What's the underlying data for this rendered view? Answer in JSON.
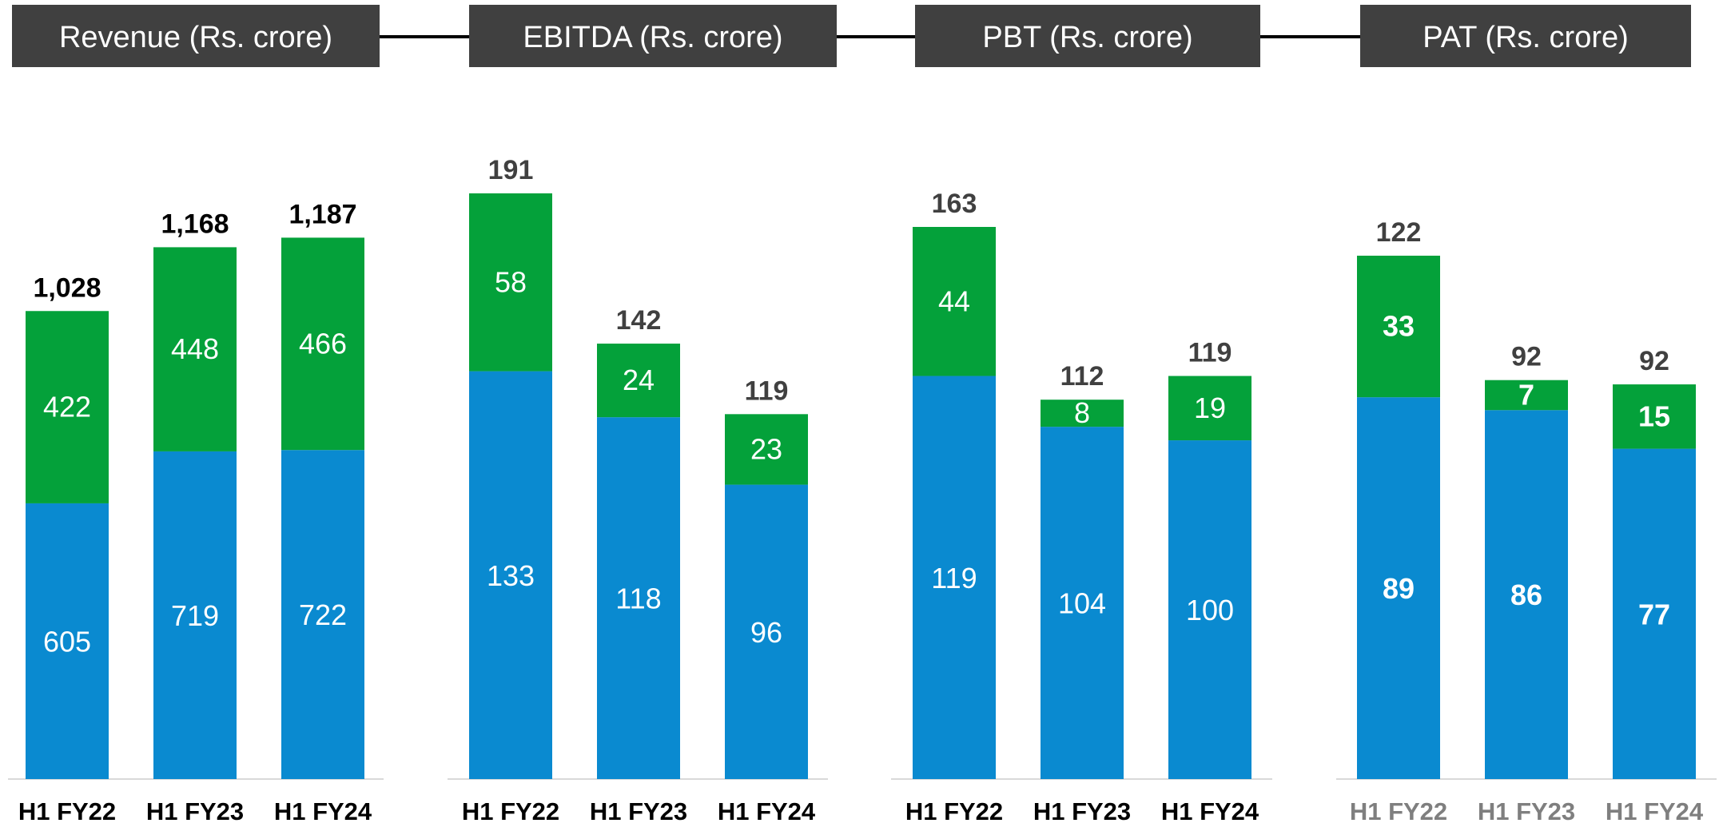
{
  "colors": {
    "segment_bottom": "#0A8AD0",
    "segment_top": "#04A13A",
    "header_bg": "#404040",
    "header_text": "#ffffff",
    "connector": "#000000",
    "baseline": "#D9D9D9",
    "total_label_dark": "#000000",
    "total_label_grey": "#404040",
    "category_label_dark": "#000000",
    "category_label_grey": "#7F7F7F"
  },
  "chart_data": [
    {
      "type": "bar",
      "stacked": true,
      "title": "Revenue (Rs. crore)",
      "categories": [
        "H1 FY22",
        "H1 FY23",
        "H1 FY24"
      ],
      "series": [
        {
          "values": [
            605,
            719,
            722
          ]
        },
        {
          "values": [
            422,
            448,
            466
          ]
        }
      ],
      "totals": [
        "1,028",
        "1,168",
        "1,187"
      ],
      "ylim": [
        0,
        1187
      ]
    },
    {
      "type": "bar",
      "stacked": true,
      "title": "EBITDA (Rs. crore)",
      "categories": [
        "H1 FY22",
        "H1 FY23",
        "H1 FY24"
      ],
      "series": [
        {
          "values": [
            133,
            118,
            96
          ]
        },
        {
          "values": [
            58,
            24,
            23
          ]
        }
      ],
      "totals": [
        "191",
        "142",
        "119"
      ],
      "ylim": [
        0,
        191
      ]
    },
    {
      "type": "bar",
      "stacked": true,
      "title": "PBT (Rs. crore)",
      "categories": [
        "H1 FY22",
        "H1 FY23",
        "H1 FY24"
      ],
      "series": [
        {
          "values": [
            119,
            104,
            100
          ]
        },
        {
          "values": [
            44,
            8,
            19
          ]
        }
      ],
      "totals": [
        "163",
        "112",
        "119"
      ],
      "ylim": [
        0,
        163
      ]
    },
    {
      "type": "bar",
      "stacked": true,
      "title": "PAT (Rs. crore)",
      "categories": [
        "H1 FY22",
        "H1 FY23",
        "H1 FY24"
      ],
      "series": [
        {
          "values": [
            89,
            86,
            77
          ]
        },
        {
          "values": [
            33,
            7,
            15
          ]
        }
      ],
      "totals": [
        "122",
        "92",
        "92"
      ],
      "ylim": [
        0,
        122
      ]
    }
  ]
}
